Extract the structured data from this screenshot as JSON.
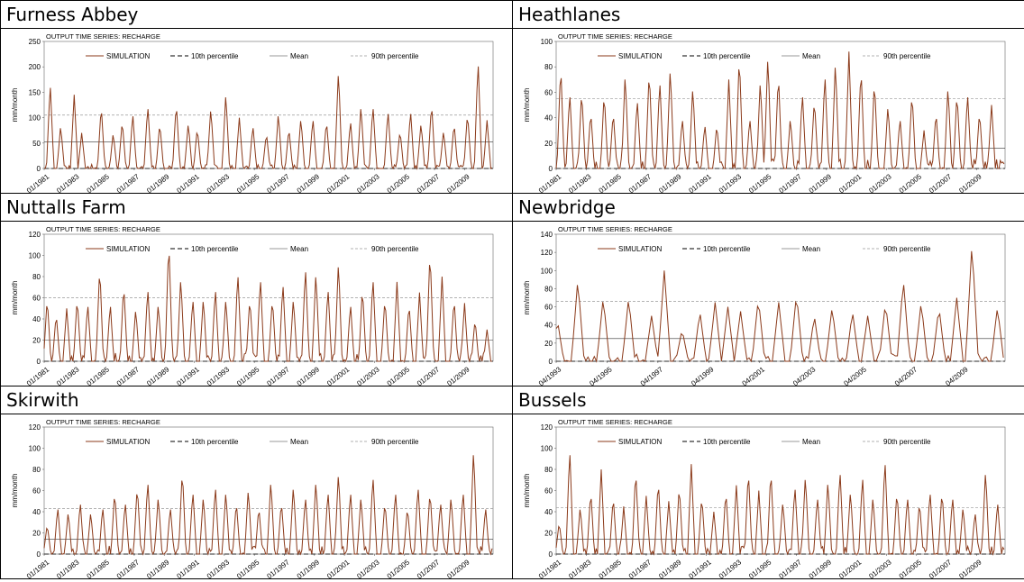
{
  "chart_data": [
    {
      "site": "Furness Abbey",
      "type": "line",
      "title": "OUTPUT TIME SERIES: RECHARGE",
      "ylabel": "mm/month",
      "ylim": [
        0,
        250
      ],
      "yticks": [
        0,
        50,
        100,
        150,
        200,
        250
      ],
      "xlim": [
        1981.0,
        2010.9
      ],
      "xticks": [
        "01/1981",
        "01/1983",
        "01/1985",
        "01/1987",
        "01/1989",
        "01/1991",
        "01/1993",
        "01/1995",
        "01/1997",
        "01/1999",
        "01/2001",
        "01/2003",
        "01/2005",
        "01/2007",
        "01/2009"
      ],
      "percentile_10": 0,
      "mean": 52,
      "percentile_90": 105,
      "peaks": [
        [
          1981.4,
          170
        ],
        [
          1982.1,
          85
        ],
        [
          1983.0,
          145
        ],
        [
          1983.5,
          70
        ],
        [
          1984.8,
          125
        ],
        [
          1985.6,
          70
        ],
        [
          1986.2,
          95
        ],
        [
          1986.9,
          110
        ],
        [
          1987.9,
          125
        ],
        [
          1988.7,
          90
        ],
        [
          1989.8,
          130
        ],
        [
          1990.6,
          90
        ],
        [
          1991.2,
          80
        ],
        [
          1992.1,
          120
        ],
        [
          1993.1,
          150
        ],
        [
          1994.0,
          100
        ],
        [
          1994.9,
          85
        ],
        [
          1995.8,
          70
        ],
        [
          1996.6,
          110
        ],
        [
          1997.3,
          80
        ],
        [
          1998.1,
          100
        ],
        [
          1998.9,
          100
        ],
        [
          1999.8,
          95
        ],
        [
          2000.6,
          195
        ],
        [
          2001.4,
          95
        ],
        [
          2002.1,
          125
        ],
        [
          2002.9,
          125
        ],
        [
          2003.9,
          115
        ],
        [
          2004.7,
          75
        ],
        [
          2005.4,
          115
        ],
        [
          2006.1,
          90
        ],
        [
          2006.8,
          130
        ],
        [
          2007.6,
          75
        ],
        [
          2008.3,
          90
        ],
        [
          2009.2,
          110
        ],
        [
          2009.9,
          215
        ],
        [
          2010.5,
          95
        ]
      ],
      "legend": [
        "SIMULATION",
        "10th percentile",
        "Mean",
        "90th percentile"
      ]
    },
    {
      "site": "Heathlanes",
      "type": "line",
      "title": "OUTPUT TIME SERIES: RECHARGE",
      "ylabel": "mm/month",
      "ylim": [
        0,
        100
      ],
      "yticks": [
        0,
        20,
        40,
        60,
        80,
        100
      ],
      "xlim": [
        1981.0,
        2010.9
      ],
      "xticks": [
        "01/1981",
        "01/1983",
        "01/1985",
        "01/1987",
        "01/1989",
        "01/1991",
        "01/1993",
        "01/1995",
        "01/1997",
        "01/1999",
        "01/2001",
        "01/2003",
        "01/2005",
        "01/2007",
        "01/2009"
      ],
      "percentile_10": 0,
      "mean": 16,
      "percentile_90": 55,
      "peaks": [
        [
          1981.3,
          82
        ],
        [
          1981.9,
          60
        ],
        [
          1982.7,
          62
        ],
        [
          1983.3,
          45
        ],
        [
          1984.2,
          60
        ],
        [
          1984.8,
          45
        ],
        [
          1985.6,
          75
        ],
        [
          1986.4,
          55
        ],
        [
          1987.2,
          78
        ],
        [
          1987.9,
          70
        ],
        [
          1988.6,
          80
        ],
        [
          1989.4,
          40
        ],
        [
          1990.1,
          65
        ],
        [
          1990.9,
          35
        ],
        [
          1991.7,
          35
        ],
        [
          1992.5,
          70
        ],
        [
          1993.2,
          90
        ],
        [
          1993.9,
          40
        ],
        [
          1994.6,
          70
        ],
        [
          1995.1,
          90
        ],
        [
          1995.8,
          75
        ],
        [
          1996.6,
          40
        ],
        [
          1997.4,
          60
        ],
        [
          1998.2,
          55
        ],
        [
          1998.9,
          75
        ],
        [
          1999.6,
          85
        ],
        [
          2000.5,
          92
        ],
        [
          2001.3,
          80
        ],
        [
          2002.2,
          70
        ],
        [
          2003.1,
          50
        ],
        [
          2003.9,
          40
        ],
        [
          2004.7,
          60
        ],
        [
          2005.5,
          30
        ],
        [
          2006.3,
          45
        ],
        [
          2007.1,
          65
        ],
        [
          2007.7,
          60
        ],
        [
          2008.4,
          60
        ],
        [
          2009.2,
          45
        ],
        [
          2010.0,
          50
        ]
      ],
      "legend": [
        "SIMULATION",
        "10th percentile",
        "Mean",
        "90th percentile"
      ]
    },
    {
      "site": "Nuttalls Farm",
      "type": "line",
      "title": "OUTPUT TIME SERIES: RECHARGE",
      "ylabel": "mm/month",
      "ylim": [
        0,
        120
      ],
      "yticks": [
        0,
        20,
        40,
        60,
        80,
        100,
        120
      ],
      "xlim": [
        1981.0,
        2010.9
      ],
      "xticks": [
        "01/1981",
        "01/1983",
        "01/1985",
        "01/1987",
        "01/1989",
        "01/1991",
        "01/1993",
        "01/1995",
        "01/1997",
        "01/1999",
        "01/2001",
        "01/2003",
        "01/2005",
        "01/2007",
        "01/2009"
      ],
      "percentile_10": 0,
      "mean": 20,
      "percentile_90": 60,
      "peaks": [
        [
          1981.2,
          60
        ],
        [
          1981.8,
          45
        ],
        [
          1982.5,
          50
        ],
        [
          1983.2,
          60
        ],
        [
          1983.9,
          55
        ],
        [
          1984.7,
          90
        ],
        [
          1985.4,
          55
        ],
        [
          1986.3,
          73
        ],
        [
          1987.1,
          50
        ],
        [
          1987.9,
          70
        ],
        [
          1988.6,
          55
        ],
        [
          1989.3,
          115
        ],
        [
          1990.1,
          80
        ],
        [
          1990.9,
          60
        ],
        [
          1991.6,
          60
        ],
        [
          1992.4,
          70
        ],
        [
          1993.1,
          60
        ],
        [
          1993.9,
          85
        ],
        [
          1994.7,
          60
        ],
        [
          1995.4,
          80
        ],
        [
          1996.2,
          60
        ],
        [
          1996.9,
          75
        ],
        [
          1997.6,
          60
        ],
        [
          1998.4,
          90
        ],
        [
          1999.1,
          85
        ],
        [
          1999.9,
          70
        ],
        [
          2000.6,
          95
        ],
        [
          2001.4,
          55
        ],
        [
          2002.2,
          70
        ],
        [
          2002.9,
          80
        ],
        [
          2003.7,
          60
        ],
        [
          2004.5,
          75
        ],
        [
          2005.3,
          55
        ],
        [
          2006.0,
          65
        ],
        [
          2006.7,
          105
        ],
        [
          2007.5,
          80
        ],
        [
          2008.3,
          60
        ],
        [
          2009.0,
          55
        ],
        [
          2009.7,
          40
        ],
        [
          2010.5,
          30
        ]
      ],
      "legend": [
        "SIMULATION",
        "10th percentile",
        "Mean",
        "90th percentile"
      ]
    },
    {
      "site": "Newbridge",
      "type": "line",
      "title": "OUTPUT TIME SERIES: RECHARGE",
      "ylabel": "mm/month",
      "ylim": [
        0,
        140
      ],
      "yticks": [
        0,
        20,
        40,
        60,
        80,
        100,
        120,
        140
      ],
      "xlim": [
        1993.25,
        2010.9
      ],
      "xticks": [
        "04/1993",
        "04/1995",
        "04/1997",
        "04/1999",
        "04/2001",
        "04/2003",
        "04/2005",
        "04/2007",
        "04/2009"
      ],
      "percentile_10": 0,
      "mean": 25,
      "percentile_90": 66,
      "peaks": [
        [
          1993.3,
          45
        ],
        [
          1994.1,
          90
        ],
        [
          1995.1,
          70
        ],
        [
          1996.1,
          70
        ],
        [
          1997.0,
          50
        ],
        [
          1997.5,
          100
        ],
        [
          1998.2,
          35
        ],
        [
          1998.9,
          55
        ],
        [
          1999.5,
          65
        ],
        [
          2000.0,
          60
        ],
        [
          2000.5,
          55
        ],
        [
          2001.2,
          70
        ],
        [
          2002.0,
          65
        ],
        [
          2002.7,
          75
        ],
        [
          2003.4,
          50
        ],
        [
          2004.1,
          60
        ],
        [
          2004.9,
          55
        ],
        [
          2005.5,
          50
        ],
        [
          2006.2,
          65
        ],
        [
          2006.9,
          90
        ],
        [
          2007.6,
          65
        ],
        [
          2008.3,
          60
        ],
        [
          2009.0,
          70
        ],
        [
          2009.6,
          130
        ],
        [
          2010.6,
          60
        ]
      ],
      "legend": [
        "SIMULATION",
        "10th percentile",
        "Mean",
        "90th percentile"
      ]
    },
    {
      "site": "Skirwith",
      "type": "line",
      "title": "OUTPUT TIME SERIES: RECHARGE",
      "ylabel": "mm/month",
      "ylim": [
        0,
        120
      ],
      "yticks": [
        0,
        20,
        40,
        60,
        80,
        100,
        120
      ],
      "xlim": [
        1981.0,
        2010.9
      ],
      "xticks": [
        "01/1981",
        "01/1983",
        "01/1985",
        "01/1987",
        "01/1989",
        "01/1991",
        "01/1993",
        "01/1995",
        "01/1997",
        "01/1999",
        "01/2001",
        "01/2003",
        "01/2005",
        "01/2007",
        "01/2009"
      ],
      "percentile_10": 0,
      "mean": 14,
      "percentile_90": 43,
      "peaks": [
        [
          1981.2,
          28
        ],
        [
          1981.9,
          45
        ],
        [
          1982.6,
          40
        ],
        [
          1983.4,
          50
        ],
        [
          1984.1,
          40
        ],
        [
          1984.9,
          45
        ],
        [
          1985.7,
          60
        ],
        [
          1986.4,
          50
        ],
        [
          1987.2,
          65
        ],
        [
          1987.9,
          70
        ],
        [
          1988.6,
          55
        ],
        [
          1989.4,
          45
        ],
        [
          1990.2,
          80
        ],
        [
          1990.9,
          60
        ],
        [
          1991.6,
          55
        ],
        [
          1992.4,
          65
        ],
        [
          1993.1,
          60
        ],
        [
          1993.8,
          50
        ],
        [
          1994.6,
          62
        ],
        [
          1995.3,
          45
        ],
        [
          1996.1,
          70
        ],
        [
          1996.8,
          50
        ],
        [
          1997.6,
          65
        ],
        [
          1998.4,
          55
        ],
        [
          1999.1,
          70
        ],
        [
          1999.9,
          60
        ],
        [
          2000.6,
          78
        ],
        [
          2001.4,
          60
        ],
        [
          2002.1,
          55
        ],
        [
          2002.9,
          75
        ],
        [
          2003.7,
          50
        ],
        [
          2004.4,
          60
        ],
        [
          2005.2,
          45
        ],
        [
          2005.9,
          65
        ],
        [
          2006.7,
          60
        ],
        [
          2007.4,
          50
        ],
        [
          2008.1,
          55
        ],
        [
          2008.9,
          60
        ],
        [
          2009.6,
          100
        ],
        [
          2010.4,
          45
        ]
      ],
      "legend": [
        "SIMULATION",
        "10th percentile",
        "Mean",
        "90th percentile"
      ]
    },
    {
      "site": "Bussels",
      "type": "line",
      "title": "OUTPUT TIME SERIES: RECHARGE",
      "ylabel": "mm/month",
      "ylim": [
        0,
        120
      ],
      "yticks": [
        0,
        20,
        40,
        60,
        80,
        100,
        120
      ],
      "xlim": [
        1981.0,
        2010.9
      ],
      "xticks": [
        "01/1981",
        "01/1983",
        "01/1985",
        "01/1987",
        "01/1989",
        "01/1991",
        "01/1993",
        "01/1995",
        "01/1997",
        "01/1999",
        "01/2001",
        "01/2003",
        "01/2005",
        "01/2007",
        "01/2009"
      ],
      "percentile_10": 0,
      "mean": 14,
      "percentile_90": 44,
      "peaks": [
        [
          1981.2,
          30
        ],
        [
          1981.9,
          100
        ],
        [
          1982.6,
          45
        ],
        [
          1983.3,
          60
        ],
        [
          1984.0,
          80
        ],
        [
          1984.8,
          55
        ],
        [
          1985.5,
          45
        ],
        [
          1986.3,
          80
        ],
        [
          1987.0,
          55
        ],
        [
          1987.8,
          70
        ],
        [
          1988.5,
          50
        ],
        [
          1989.2,
          65
        ],
        [
          1990.0,
          85
        ],
        [
          1990.7,
          55
        ],
        [
          1991.5,
          40
        ],
        [
          1992.3,
          60
        ],
        [
          1993.0,
          65
        ],
        [
          1993.8,
          80
        ],
        [
          1994.5,
          60
        ],
        [
          1995.3,
          80
        ],
        [
          1996.1,
          50
        ],
        [
          1996.9,
          65
        ],
        [
          1997.6,
          75
        ],
        [
          1998.4,
          55
        ],
        [
          1999.1,
          70
        ],
        [
          1999.9,
          80
        ],
        [
          2000.6,
          60
        ],
        [
          2001.4,
          75
        ],
        [
          2002.1,
          55
        ],
        [
          2002.9,
          90
        ],
        [
          2003.7,
          60
        ],
        [
          2004.4,
          55
        ],
        [
          2005.2,
          50
        ],
        [
          2005.9,
          60
        ],
        [
          2006.7,
          60
        ],
        [
          2007.4,
          55
        ],
        [
          2008.1,
          45
        ],
        [
          2008.9,
          40
        ],
        [
          2009.6,
          80
        ],
        [
          2010.4,
          50
        ]
      ],
      "legend": [
        "SIMULATION",
        "10th percentile",
        "Mean",
        "90th percentile"
      ]
    }
  ]
}
